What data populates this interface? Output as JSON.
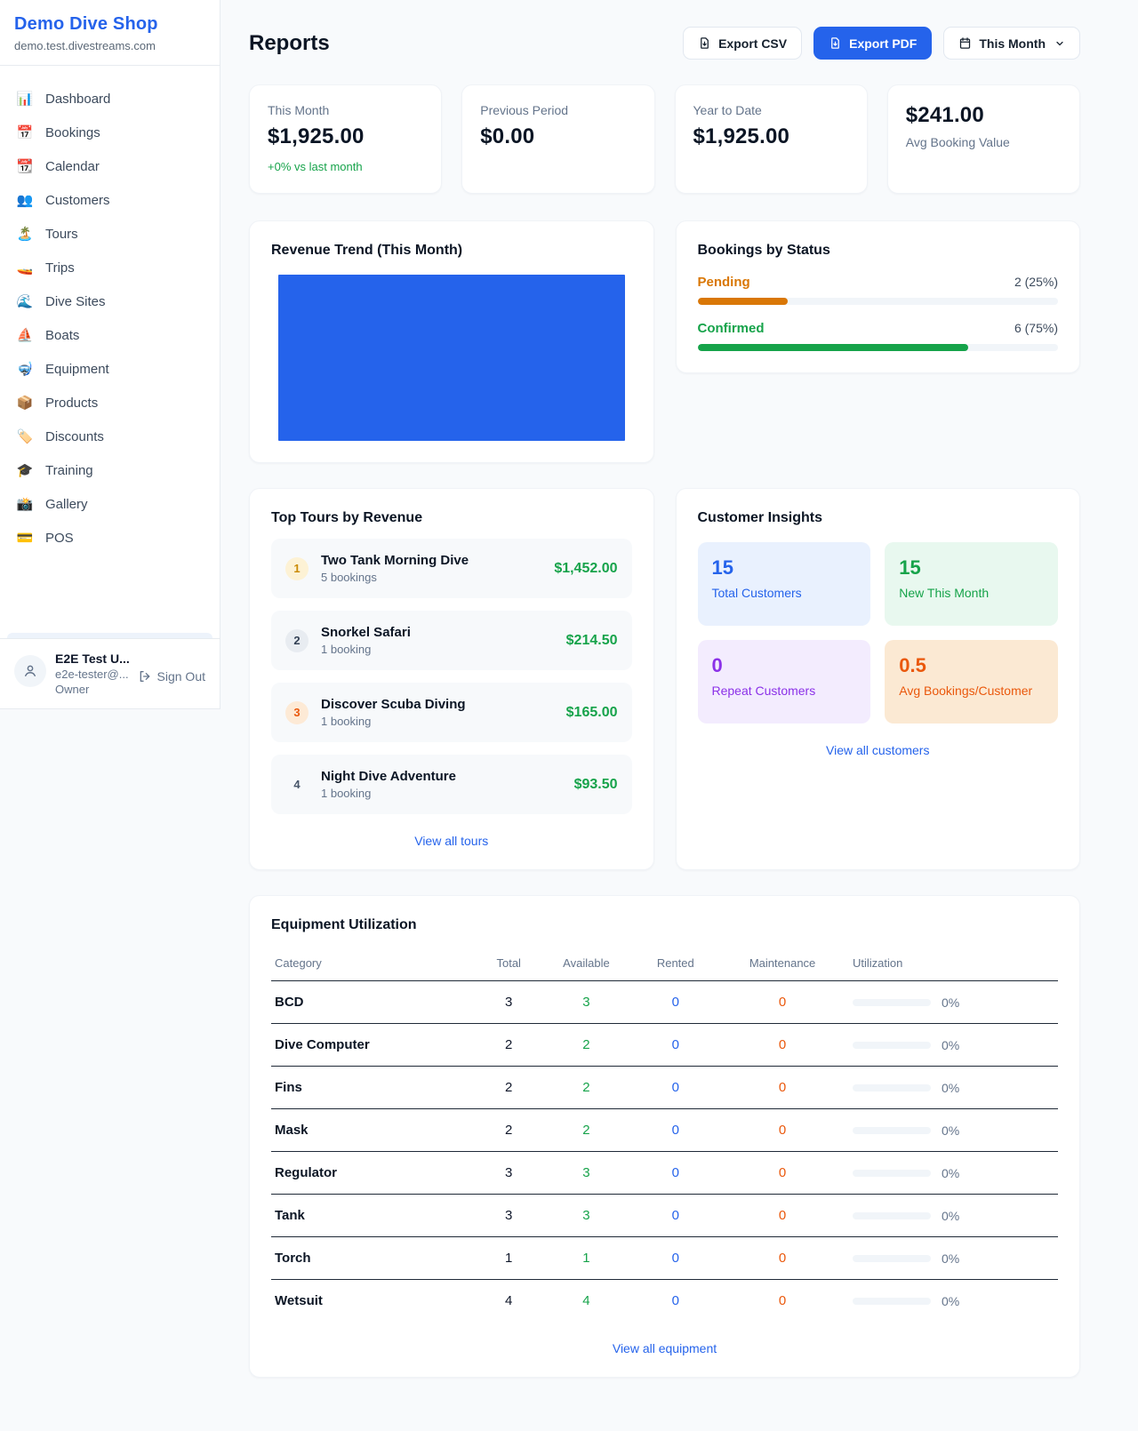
{
  "brand": {
    "name": "Demo Dive Shop",
    "domain": "demo.test.divestreams.com"
  },
  "sidebar": {
    "items": [
      {
        "icon": "📊",
        "label": "Dashboard"
      },
      {
        "icon": "📅",
        "label": "Bookings"
      },
      {
        "icon": "📆",
        "label": "Calendar"
      },
      {
        "icon": "👥",
        "label": "Customers"
      },
      {
        "icon": "🏝️",
        "label": "Tours"
      },
      {
        "icon": "🚤",
        "label": "Trips"
      },
      {
        "icon": "🌊",
        "label": "Dive Sites"
      },
      {
        "icon": "⛵",
        "label": "Boats"
      },
      {
        "icon": "🤿",
        "label": "Equipment"
      },
      {
        "icon": "📦",
        "label": "Products"
      },
      {
        "icon": "🏷️",
        "label": "Discounts"
      },
      {
        "icon": "🎓",
        "label": "Training"
      },
      {
        "icon": "📸",
        "label": "Gallery"
      },
      {
        "icon": "💳",
        "label": "POS"
      }
    ]
  },
  "user": {
    "name": "E2E Test U...",
    "email": "e2e-tester@...",
    "role": "Owner",
    "sign_out": "Sign Out"
  },
  "header": {
    "title": "Reports",
    "export_csv": "Export CSV",
    "export_pdf": "Export PDF",
    "period": "This Month"
  },
  "stats": [
    {
      "label": "This Month",
      "value": "$1,925.00",
      "note": "+0% vs last month"
    },
    {
      "label": "Previous Period",
      "value": "$0.00"
    },
    {
      "label": "Year to Date",
      "value": "$1,925.00"
    },
    {
      "label": "Avg Booking Value",
      "value": "$241.00"
    }
  ],
  "revenue_trend": {
    "title": "Revenue Trend (This Month)",
    "bar_color": "#2563eb"
  },
  "bookings_by_status": {
    "title": "Bookings by Status",
    "rows": [
      {
        "label": "Pending",
        "count": "2 (25%)",
        "pct": 25,
        "color": "#d97706"
      },
      {
        "label": "Confirmed",
        "count": "6 (75%)",
        "pct": 75,
        "color": "#16a34a"
      }
    ]
  },
  "top_tours": {
    "title": "Top Tours by Revenue",
    "link": "View all tours",
    "rows": [
      {
        "rank": "1",
        "name": "Two Tank Morning Dive",
        "bookings": "5 bookings",
        "amount": "$1,452.00",
        "badge_bg": "#fdf2d5",
        "badge_color": "#ca8a04"
      },
      {
        "rank": "2",
        "name": "Snorkel Safari",
        "bookings": "1 booking",
        "amount": "$214.50",
        "badge_bg": "#e8ecf1",
        "badge_color": "#334155"
      },
      {
        "rank": "3",
        "name": "Discover Scuba Diving",
        "bookings": "1 booking",
        "amount": "$165.00",
        "badge_bg": "#fdead6",
        "badge_color": "#ea580c"
      },
      {
        "rank": "4",
        "name": "Night Dive Adventure",
        "bookings": "1 booking",
        "amount": "$93.50",
        "badge_bg": "transparent",
        "badge_color": "#475569"
      }
    ]
  },
  "customer_insights": {
    "title": "Customer Insights",
    "link": "View all customers",
    "tiles": [
      {
        "value": "15",
        "label": "Total Customers",
        "bg": "#e9f1fe",
        "color": "#2563eb"
      },
      {
        "value": "15",
        "label": "New This Month",
        "bg": "#e8f8ef",
        "color": "#16a34a"
      },
      {
        "value": "0",
        "label": "Repeat Customers",
        "bg": "#f3ecfe",
        "color": "#8b31e8"
      },
      {
        "value": "0.5",
        "label": "Avg Bookings/Customer",
        "bg": "#fbe9d3",
        "color": "#ea580c"
      }
    ]
  },
  "equipment": {
    "title": "Equipment Utilization",
    "link": "View all equipment",
    "columns": [
      "Category",
      "Total",
      "Available",
      "Rented",
      "Maintenance",
      "Utilization"
    ],
    "rows": [
      {
        "category": "BCD",
        "total": "3",
        "available": "3",
        "rented": "0",
        "maintenance": "0",
        "utilization": "0%"
      },
      {
        "category": "Dive Computer",
        "total": "2",
        "available": "2",
        "rented": "0",
        "maintenance": "0",
        "utilization": "0%"
      },
      {
        "category": "Fins",
        "total": "2",
        "available": "2",
        "rented": "0",
        "maintenance": "0",
        "utilization": "0%"
      },
      {
        "category": "Mask",
        "total": "2",
        "available": "2",
        "rented": "0",
        "maintenance": "0",
        "utilization": "0%"
      },
      {
        "category": "Regulator",
        "total": "3",
        "available": "3",
        "rented": "0",
        "maintenance": "0",
        "utilization": "0%"
      },
      {
        "category": "Tank",
        "total": "3",
        "available": "3",
        "rented": "0",
        "maintenance": "0",
        "utilization": "0%"
      },
      {
        "category": "Torch",
        "total": "1",
        "available": "1",
        "rented": "0",
        "maintenance": "0",
        "utilization": "0%"
      },
      {
        "category": "Wetsuit",
        "total": "4",
        "available": "4",
        "rented": "0",
        "maintenance": "0",
        "utilization": "0%"
      }
    ]
  },
  "chart_data": [
    {
      "type": "bar",
      "title": "Revenue Trend (This Month)",
      "categories": [
        "This Month"
      ],
      "values": [
        1925.0
      ],
      "note": "single full-width solid bar, no axes or labels",
      "bar_color": "#2563eb"
    },
    {
      "type": "bar",
      "title": "Bookings by Status",
      "categories": [
        "Pending",
        "Confirmed"
      ],
      "values": [
        2,
        6
      ],
      "percentages": [
        25,
        75
      ],
      "colors": [
        "#d97706",
        "#16a34a"
      ]
    }
  ]
}
